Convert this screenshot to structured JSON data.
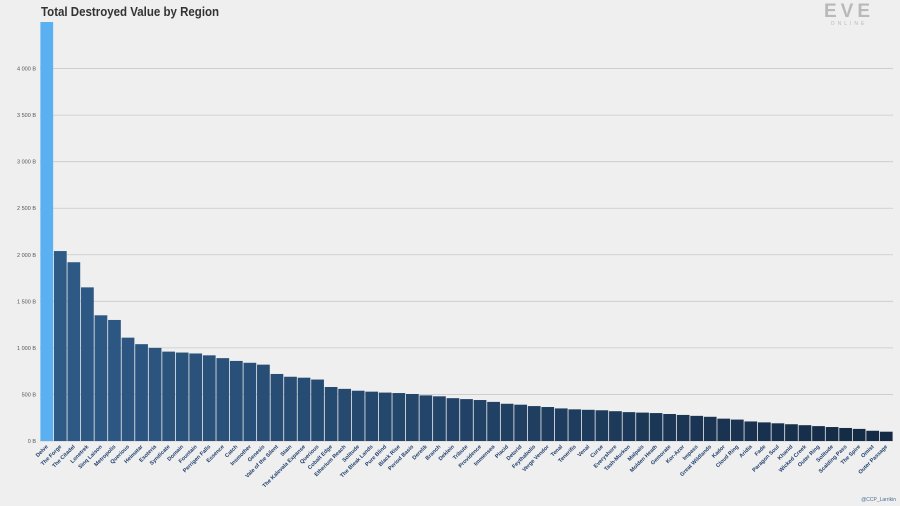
{
  "chart_data": {
    "type": "bar",
    "title": "Total Destroyed Value by Region",
    "xlabel": "",
    "ylabel": "",
    "ylim": [
      0,
      4500
    ],
    "y_ticks": [
      0,
      500,
      1000,
      1500,
      2000,
      2500,
      3000,
      3500,
      4000
    ],
    "y_tick_labels": [
      "0 B",
      "500 B",
      "1 000 B",
      "1 500 B",
      "2 000 B",
      "2 500 B",
      "3 000 B",
      "3 500 B",
      "4 000 B"
    ],
    "grid": true,
    "colors": {
      "highlight": "#5ab0f0",
      "high": "#2e5a86",
      "low": "#142a44",
      "grid": "#c9c9c9",
      "axis_text": "#555555",
      "category_text": "#1f3f6b"
    },
    "categories": [
      "Delve",
      "The Forge",
      "The Citadel",
      "Lonetrek",
      "Sinq Laison",
      "Metropolis",
      "Querious",
      "Heimatar",
      "Esoteria",
      "Syndicate",
      "Domain",
      "Fountain",
      "Perrigen Falls",
      "Essence",
      "Catch",
      "Insmother",
      "Genesis",
      "Vale of the Silent",
      "Stain",
      "The Kalevala Expanse",
      "Querious",
      "Cobalt Edge",
      "Etherium Reach",
      "Solitude",
      "The Bleak Lands",
      "Pure Blind",
      "Black Rise",
      "Period Basis",
      "Derelik",
      "Branch",
      "Deklein",
      "Tribute",
      "Providence",
      "Immensea",
      "Placid",
      "Detorid",
      "Feythabolis",
      "Verge Vendor",
      "Tenal",
      "Tenerifis",
      "Venal",
      "Curse",
      "Everyshore",
      "Tash-Murkon",
      "Malpais",
      "Molden Heath",
      "Gemorate",
      "Kor-Azor",
      "Impass",
      "Great Wildlands",
      "Kador",
      "Cloud Ring",
      "Aridia",
      "Fade",
      "Paragon Soul",
      "Khanid",
      "Wicked Creek",
      "Outer Ring",
      "Solitude",
      "Scalding Pass",
      "The Spire",
      "Omist",
      "Outer Passage"
    ],
    "values": [
      4500,
      2040,
      1920,
      1650,
      1350,
      1300,
      1110,
      1040,
      1000,
      960,
      950,
      940,
      920,
      890,
      860,
      840,
      820,
      720,
      690,
      680,
      660,
      580,
      560,
      540,
      530,
      520,
      515,
      505,
      490,
      480,
      460,
      450,
      440,
      420,
      400,
      390,
      375,
      365,
      350,
      340,
      335,
      330,
      320,
      310,
      305,
      300,
      290,
      280,
      270,
      260,
      240,
      230,
      210,
      200,
      190,
      180,
      170,
      160,
      150,
      140,
      130,
      110,
      100
    ]
  },
  "logo": {
    "main": "EVE",
    "sub": "ONLINE"
  },
  "credit": "@CCP_Larrikin"
}
